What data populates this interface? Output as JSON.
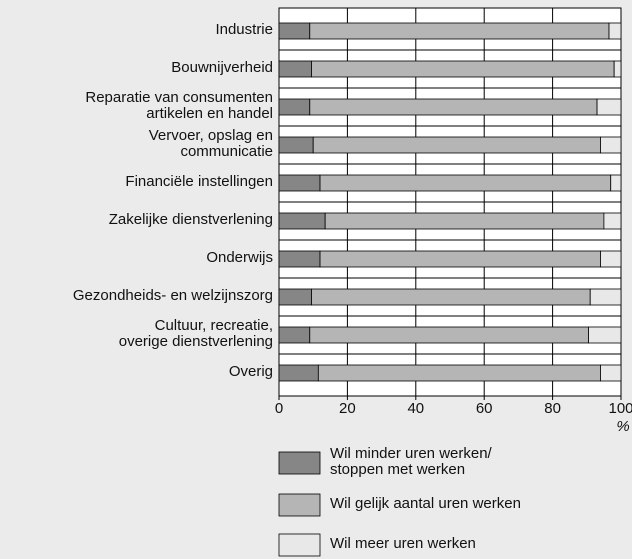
{
  "chart_data": {
    "type": "stacked_barh",
    "categories": [
      "Industrie",
      "Bouwnijverheid",
      "Reparatie van consumenten\nartikelen en handel",
      "Vervoer, opslag en\ncommunicatie",
      "Financiële instellingen",
      "Zakelijke dienstverlening",
      "Onderwijs",
      "Gezondheids- en welzijnszorg",
      "Cultuur, recreatie,\noverige dienstverlening",
      "Overig"
    ],
    "series": [
      {
        "name": "Wil minder uren werken/\nstoppen met werken",
        "color": "#868686",
        "values": [
          9,
          9.5,
          9,
          10,
          12,
          13.5,
          12,
          9.5,
          9,
          11.5
        ]
      },
      {
        "name": "Wil gelijk aantal uren werken",
        "color": "#b5b5b5",
        "values": [
          87.5,
          88.5,
          84,
          84,
          85,
          81.5,
          82,
          81.5,
          81.5,
          82.5
        ]
      },
      {
        "name": "Wil meer uren werken",
        "color": "#e8e8e8",
        "values": [
          3.5,
          2,
          7,
          6,
          3,
          5,
          6,
          9,
          9.5,
          6
        ]
      }
    ],
    "xlim": [
      0,
      100
    ],
    "xticks": [
      0,
      20,
      40,
      60,
      80,
      100
    ],
    "x_label": "%",
    "grid": true
  }
}
